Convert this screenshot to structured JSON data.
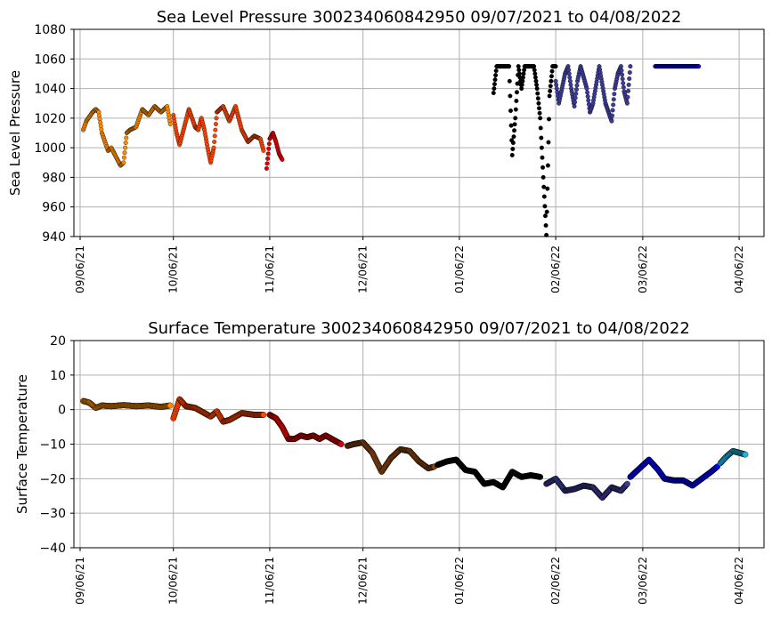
{
  "chart_data": [
    {
      "type": "scatter",
      "title": "Sea Level Pressure 300234060842950  09/07/2021 to 04/08/2022",
      "xlabel": "",
      "ylabel": "Sea Level Pressure",
      "xlim": [
        "2021-09-04",
        "2022-04-14"
      ],
      "ylim": [
        940,
        1080
      ],
      "yticks": [
        940,
        960,
        980,
        1000,
        1020,
        1040,
        1060,
        1080
      ],
      "xticks": [
        "2021-09-06",
        "2021-10-06",
        "2021-11-06",
        "2021-12-06",
        "2022-01-06",
        "2022-02-06",
        "2022-03-06",
        "2022-04-06"
      ],
      "xtick_labels": [
        "09/06/21",
        "10/06/21",
        "11/06/21",
        "12/06/21",
        "01/06/22",
        "02/06/22",
        "03/06/22",
        "04/06/22"
      ],
      "grid": true,
      "series": [
        {
          "color": "#ff8c00",
          "points": [
            [
              "2021-09-07",
              1012
            ],
            [
              "2021-09-08",
              1018
            ],
            [
              "2021-09-10",
              1024
            ],
            [
              "2021-09-11",
              1026
            ],
            [
              "2021-09-12",
              1024
            ],
            [
              "2021-09-13",
              1010
            ],
            [
              "2021-09-14",
              1004
            ],
            [
              "2021-09-15",
              998
            ],
            [
              "2021-09-16",
              1000
            ],
            [
              "2021-09-17",
              996
            ],
            [
              "2021-09-18",
              992
            ],
            [
              "2021-09-19",
              988
            ],
            [
              "2021-09-20",
              990
            ],
            [
              "2021-09-21",
              1010
            ],
            [
              "2021-09-22",
              1012
            ],
            [
              "2021-09-24",
              1014
            ],
            [
              "2021-09-26",
              1026
            ],
            [
              "2021-09-28",
              1022
            ],
            [
              "2021-09-30",
              1028
            ],
            [
              "2021-10-02",
              1024
            ],
            [
              "2021-10-04",
              1028
            ],
            [
              "2021-10-05",
              1016
            ]
          ]
        },
        {
          "color": "#ff4500",
          "points": [
            [
              "2021-10-06",
              1022
            ],
            [
              "2021-10-07",
              1010
            ],
            [
              "2021-10-08",
              1002
            ],
            [
              "2021-10-09",
              1010
            ],
            [
              "2021-10-10",
              1018
            ],
            [
              "2021-10-11",
              1026
            ],
            [
              "2021-10-12",
              1020
            ],
            [
              "2021-10-13",
              1014
            ],
            [
              "2021-10-14",
              1012
            ],
            [
              "2021-10-15",
              1020
            ],
            [
              "2021-10-16",
              1012
            ],
            [
              "2021-10-17",
              1000
            ],
            [
              "2021-10-18",
              990
            ],
            [
              "2021-10-19",
              1000
            ],
            [
              "2021-10-20",
              1024
            ],
            [
              "2021-10-22",
              1028
            ],
            [
              "2021-10-24",
              1018
            ],
            [
              "2021-10-26",
              1028
            ],
            [
              "2021-10-28",
              1012
            ],
            [
              "2021-10-30",
              1004
            ],
            [
              "2021-11-01",
              1008
            ],
            [
              "2021-11-03",
              1006
            ],
            [
              "2021-11-04",
              998
            ]
          ]
        },
        {
          "color": "#dd0000",
          "points": [
            [
              "2021-11-05",
              986
            ],
            [
              "2021-11-06",
              1006
            ],
            [
              "2021-11-07",
              1010
            ],
            [
              "2021-11-08",
              1004
            ],
            [
              "2021-11-09",
              996
            ],
            [
              "2021-11-10",
              992
            ]
          ]
        },
        {
          "color": "#000000",
          "points": [
            [
              "2022-01-17",
              1037
            ],
            [
              "2022-01-18",
              1055
            ],
            [
              "2022-01-20",
              1055
            ],
            [
              "2022-01-22",
              1055
            ],
            [
              "2022-01-23",
              995
            ],
            [
              "2022-01-24",
              1020
            ],
            [
              "2022-01-25",
              1055
            ],
            [
              "2022-01-26",
              1040
            ],
            [
              "2022-01-27",
              1055
            ],
            [
              "2022-01-29",
              1055
            ],
            [
              "2022-01-30",
              1055
            ],
            [
              "2022-01-31",
              1040
            ],
            [
              "2022-02-01",
              1020
            ],
            [
              "2022-02-02",
              980
            ],
            [
              "2022-02-03",
              941
            ],
            [
              "2022-02-04",
              1035
            ],
            [
              "2022-02-05",
              1055
            ],
            [
              "2022-02-06",
              1055
            ]
          ]
        },
        {
          "color": "#3c3c96",
          "points": [
            [
              "2022-02-06",
              1045
            ],
            [
              "2022-02-07",
              1030
            ],
            [
              "2022-02-08",
              1040
            ],
            [
              "2022-02-09",
              1050
            ],
            [
              "2022-02-10",
              1055
            ],
            [
              "2022-02-11",
              1040
            ],
            [
              "2022-02-12",
              1028
            ],
            [
              "2022-02-13",
              1045
            ],
            [
              "2022-02-14",
              1055
            ],
            [
              "2022-02-16",
              1040
            ],
            [
              "2022-02-17",
              1024
            ],
            [
              "2022-02-18",
              1030
            ],
            [
              "2022-02-20",
              1055
            ],
            [
              "2022-02-22",
              1030
            ],
            [
              "2022-02-24",
              1018
            ],
            [
              "2022-02-25",
              1040
            ],
            [
              "2022-02-26",
              1050
            ],
            [
              "2022-02-27",
              1055
            ],
            [
              "2022-02-28",
              1038
            ],
            [
              "2022-03-01",
              1030
            ],
            [
              "2022-03-02",
              1055
            ]
          ]
        },
        {
          "color": "#0000ff",
          "points": [
            [
              "2022-03-10",
              1055
            ],
            [
              "2022-03-12",
              1055
            ],
            [
              "2022-03-14",
              1055
            ],
            [
              "2022-03-16",
              1055
            ],
            [
              "2022-03-18",
              1055
            ],
            [
              "2022-03-20",
              1055
            ],
            [
              "2022-03-22",
              1055
            ],
            [
              "2022-03-24",
              1055
            ]
          ]
        }
      ]
    },
    {
      "type": "scatter",
      "title": "Surface Temperature 300234060842950  09/07/2021 to 04/08/2022",
      "xlabel": "",
      "ylabel": "Surface Temperature",
      "xlim": [
        "2021-09-04",
        "2022-04-14"
      ],
      "ylim": [
        -40,
        20
      ],
      "yticks": [
        -40,
        -30,
        -20,
        -10,
        0,
        10,
        20
      ],
      "ytick_labels": [
        "−40",
        "−30",
        "−20",
        "−10",
        "0",
        "10",
        "20"
      ],
      "xticks": [
        "2021-09-06",
        "2021-10-06",
        "2021-11-06",
        "2021-12-06",
        "2022-01-06",
        "2022-02-06",
        "2022-03-06",
        "2022-04-06"
      ],
      "xtick_labels": [
        "09/06/21",
        "10/06/21",
        "11/06/21",
        "12/06/21",
        "01/06/22",
        "02/06/22",
        "03/06/22",
        "04/06/22"
      ],
      "grid": true,
      "series": [
        {
          "color": "#ff8c00",
          "points": [
            [
              "2021-09-07",
              2.5
            ],
            [
              "2021-09-09",
              2.0
            ],
            [
              "2021-09-11",
              0.5
            ],
            [
              "2021-09-13",
              1.2
            ],
            [
              "2021-09-16",
              1.0
            ],
            [
              "2021-09-20",
              1.3
            ],
            [
              "2021-09-24",
              1.0
            ],
            [
              "2021-09-28",
              1.2
            ],
            [
              "2021-10-02",
              0.8
            ],
            [
              "2021-10-05",
              1.2
            ]
          ]
        },
        {
          "color": "#ff4500",
          "points": [
            [
              "2021-10-06",
              -2.5
            ],
            [
              "2021-10-08",
              3.0
            ],
            [
              "2021-10-10",
              1.0
            ],
            [
              "2021-10-13",
              0.5
            ],
            [
              "2021-10-16",
              -1.0
            ],
            [
              "2021-10-18",
              -2.0
            ],
            [
              "2021-10-20",
              -0.5
            ],
            [
              "2021-10-22",
              -3.5
            ],
            [
              "2021-10-24",
              -3.0
            ],
            [
              "2021-10-26",
              -2.0
            ],
            [
              "2021-10-28",
              -1.0
            ],
            [
              "2021-11-01",
              -1.5
            ],
            [
              "2021-11-04",
              -1.5
            ]
          ]
        },
        {
          "color": "#dd0000",
          "points": [
            [
              "2021-11-06",
              -1.5
            ],
            [
              "2021-11-08",
              -2.5
            ],
            [
              "2021-11-10",
              -5.0
            ],
            [
              "2021-11-12",
              -8.5
            ],
            [
              "2021-11-14",
              -8.5
            ],
            [
              "2021-11-16",
              -7.5
            ],
            [
              "2021-11-18",
              -8.0
            ],
            [
              "2021-11-20",
              -7.5
            ],
            [
              "2021-11-22",
              -8.5
            ],
            [
              "2021-11-24",
              -7.5
            ],
            [
              "2021-11-26",
              -8.5
            ],
            [
              "2021-11-29",
              -10.0
            ]
          ]
        },
        {
          "color": "#8b4513",
          "points": [
            [
              "2021-12-01",
              -10.5
            ],
            [
              "2021-12-03",
              -10.0
            ],
            [
              "2021-12-06",
              -9.5
            ],
            [
              "2021-12-09",
              -12.5
            ],
            [
              "2021-12-12",
              -18.0
            ],
            [
              "2021-12-15",
              -14.0
            ],
            [
              "2021-12-18",
              -11.5
            ],
            [
              "2021-12-21",
              -12.0
            ],
            [
              "2021-12-24",
              -15.0
            ],
            [
              "2021-12-27",
              -17.0
            ],
            [
              "2021-12-29",
              -16.5
            ]
          ]
        },
        {
          "color": "#000000",
          "points": [
            [
              "2021-12-30",
              -16.0
            ],
            [
              "2022-01-02",
              -15.0
            ],
            [
              "2022-01-05",
              -14.5
            ],
            [
              "2022-01-08",
              -17.5
            ],
            [
              "2022-01-11",
              -18.0
            ],
            [
              "2022-01-14",
              -21.5
            ],
            [
              "2022-01-17",
              -21.0
            ],
            [
              "2022-01-20",
              -22.5
            ],
            [
              "2022-01-23",
              -18.0
            ],
            [
              "2022-01-26",
              -19.5
            ],
            [
              "2022-01-29",
              -19.0
            ],
            [
              "2022-02-01",
              -19.5
            ]
          ]
        },
        {
          "color": "#3c3c96",
          "points": [
            [
              "2022-02-03",
              -21.5
            ],
            [
              "2022-02-06",
              -20.0
            ],
            [
              "2022-02-09",
              -23.5
            ],
            [
              "2022-02-12",
              -23.0
            ],
            [
              "2022-02-15",
              -22.0
            ],
            [
              "2022-02-18",
              -22.5
            ],
            [
              "2022-02-21",
              -25.5
            ],
            [
              "2022-02-24",
              -22.5
            ],
            [
              "2022-02-27",
              -23.5
            ],
            [
              "2022-03-01",
              -21.5
            ]
          ]
        },
        {
          "color": "#0000ff",
          "points": [
            [
              "2022-03-02",
              -19.5
            ],
            [
              "2022-03-05",
              -17.0
            ],
            [
              "2022-03-08",
              -14.5
            ],
            [
              "2022-03-11",
              -17.5
            ],
            [
              "2022-03-13",
              -20.0
            ],
            [
              "2022-03-16",
              -20.5
            ],
            [
              "2022-03-19",
              -20.5
            ],
            [
              "2022-03-22",
              -22.0
            ],
            [
              "2022-03-25",
              -20.0
            ],
            [
              "2022-03-28",
              -18.0
            ],
            [
              "2022-03-30",
              -16.5
            ]
          ]
        },
        {
          "color": "#1eb4e6",
          "points": [
            [
              "2022-03-31",
              -15.5
            ],
            [
              "2022-04-02",
              -13.5
            ],
            [
              "2022-04-04",
              -12.0
            ],
            [
              "2022-04-06",
              -12.5
            ],
            [
              "2022-04-08",
              -13.0
            ]
          ]
        }
      ]
    }
  ]
}
